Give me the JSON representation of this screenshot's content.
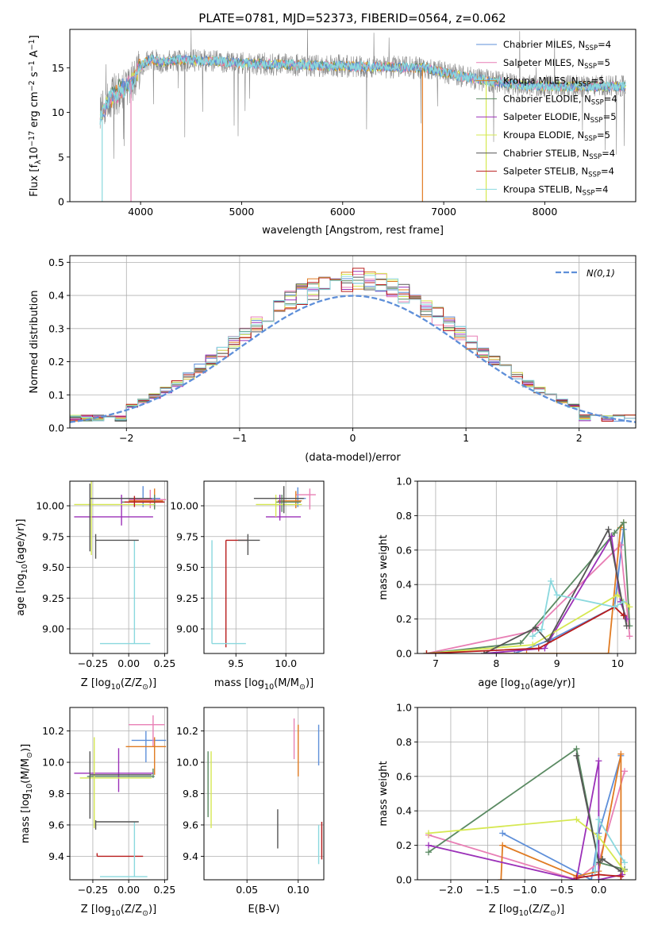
{
  "figure": {
    "title": "PLATE=0781, MJD=52373, FIBERID=0564, z=0.062"
  },
  "models": [
    {
      "name": "Chabrier MILES",
      "nssp": "4",
      "color": "#5e8fd9"
    },
    {
      "name": "Salpeter MILES",
      "nssp": "5",
      "color": "#e87fb5"
    },
    {
      "name": "Kroupa MILES",
      "nssp": "5",
      "color": "#e07b22"
    },
    {
      "name": "Chabrier ELODIE",
      "nssp": "4",
      "color": "#5a8a62"
    },
    {
      "name": "Salpeter ELODIE",
      "nssp": "5",
      "color": "#9b30b8"
    },
    {
      "name": "Kroupa ELODIE",
      "nssp": "5",
      "color": "#d6e852"
    },
    {
      "name": "Chabrier STELIB",
      "nssp": "4",
      "color": "#555555"
    },
    {
      "name": "Salpeter STELIB",
      "nssp": "4",
      "color": "#b81c1c"
    },
    {
      "name": "Kroupa STELIB",
      "nssp": "4",
      "color": "#8ad8de"
    }
  ],
  "legend_nssp_prefix": "N",
  "legend_nssp_sub": "SSP",
  "chart_data": [
    {
      "id": "spectrum",
      "type": "line",
      "xlabel": "wavelength [Angstrom, rest frame]",
      "ylabel": "Flux [f_λ10^{-17} erg cm^{-2} s^{-1} A^{-1}]",
      "xlim": [
        3300,
        8900
      ],
      "ylim": [
        0,
        19.3
      ],
      "xticks": [
        4000,
        5000,
        6000,
        7000,
        8000
      ],
      "yticks": [
        0,
        5,
        10,
        15
      ],
      "continuum_x": [
        3600,
        3700,
        3800,
        3900,
        4000,
        4100,
        4200,
        4400,
        4600,
        4800,
        5000,
        5300,
        5600,
        6000,
        6400,
        6800,
        7000,
        7200,
        7400,
        7600,
        7800,
        8200,
        8600,
        8800
      ],
      "continuum_y": [
        9.5,
        11.5,
        12.5,
        13.2,
        15.2,
        16.0,
        15.6,
        15.9,
        15.8,
        15.7,
        15.5,
        15.4,
        15.3,
        15.2,
        15.1,
        15.0,
        14.5,
        14.0,
        13.6,
        13.3,
        13.0,
        12.9,
        12.9,
        12.9
      ],
      "legend_position": "upper right"
    },
    {
      "id": "residuals",
      "type": "step",
      "xlabel": "(data-model)/error",
      "ylabel": "Normed distribution",
      "xlim": [
        -2.5,
        2.5
      ],
      "ylim": [
        0,
        0.52
      ],
      "xticks": [
        -2,
        -1,
        0,
        1,
        2
      ],
      "yticks": [
        0.0,
        0.1,
        0.2,
        0.3,
        0.4,
        0.5
      ],
      "bin_width": 0.1,
      "normal_curve_label": "N(0,1)",
      "normal_curve_color": "#5e8fd9",
      "legend_position": "upper right"
    },
    {
      "id": "age-vs-Z",
      "type": "errorbar",
      "xlabel": "Z [log10(Z/Z⊙)]",
      "ylabel": "age  [log10(age/yr)]",
      "xlim": [
        -0.41,
        0.27
      ],
      "ylim": [
        8.8,
        10.2
      ],
      "xticks": [
        -0.25,
        0.0,
        0.25
      ],
      "yticks": [
        9.0,
        9.25,
        9.5,
        9.75,
        10.0
      ],
      "points": [
        {
          "model": 0,
          "x": 0.1,
          "y": 10.06,
          "xlo": -0.05,
          "xhi": 0.22,
          "ylo": 9.99,
          "yhi": 10.16
        },
        {
          "model": 1,
          "x": 0.15,
          "y": 10.05,
          "xlo": 0.0,
          "xhi": 0.26,
          "ylo": 9.98,
          "yhi": 10.13
        },
        {
          "model": 2,
          "x": 0.18,
          "y": 10.04,
          "xlo": 0.0,
          "xhi": 0.24,
          "ylo": 9.98,
          "yhi": 10.14
        },
        {
          "model": 3,
          "x": 0.18,
          "y": 10.03,
          "xlo": -0.05,
          "xhi": 0.25,
          "ylo": 9.97,
          "yhi": 10.09
        },
        {
          "model": 4,
          "x": -0.05,
          "y": 9.91,
          "xlo": -0.38,
          "xhi": 0.17,
          "ylo": 9.84,
          "yhi": 10.09
        },
        {
          "model": 5,
          "x": -0.26,
          "y": 10.01,
          "xlo": -0.38,
          "xhi": 0.18,
          "ylo": 9.6,
          "yhi": 10.22
        },
        {
          "model": 6,
          "x": -0.27,
          "y": 10.06,
          "xlo": -0.27,
          "xhi": 0.16,
          "ylo": 9.63,
          "yhi": 10.18
        },
        {
          "model": 7,
          "x": 0.04,
          "y": 10.03,
          "xlo": -0.03,
          "xhi": 0.25,
          "ylo": 9.99,
          "yhi": 10.08
        },
        {
          "model": 8,
          "x": 0.04,
          "y": 8.88,
          "xlo": -0.2,
          "xhi": 0.15,
          "ylo": 8.88,
          "yhi": 9.72
        },
        {
          "model": 6,
          "x": -0.23,
          "y": 9.72,
          "xlo": -0.23,
          "xhi": 0.07,
          "ylo": 9.57,
          "yhi": 9.77
        }
      ]
    },
    {
      "id": "age-vs-mass",
      "type": "errorbar",
      "xlabel": "mass [log10(M/M⊙)]",
      "ylabel": "",
      "xlim": [
        9.18,
        10.38
      ],
      "ylim": [
        8.8,
        10.2
      ],
      "xticks": [
        9.5,
        10.0
      ],
      "yticks": [
        9.0,
        9.25,
        9.5,
        9.75,
        10.0
      ],
      "points": [
        {
          "model": 0,
          "x": 10.12,
          "y": 10.06,
          "xlo": 10.0,
          "xhi": 10.2,
          "ylo": 9.99,
          "yhi": 10.15
        },
        {
          "model": 1,
          "x": 10.24,
          "y": 10.09,
          "xlo": 10.1,
          "xhi": 10.3,
          "ylo": 9.97,
          "yhi": 10.14
        },
        {
          "model": 2,
          "x": 10.1,
          "y": 10.04,
          "xlo": 9.92,
          "xhi": 10.16,
          "ylo": 9.98,
          "yhi": 10.12
        },
        {
          "model": 3,
          "x": 9.96,
          "y": 10.03,
          "xlo": 9.9,
          "xhi": 10.15,
          "ylo": 9.95,
          "yhi": 10.09
        },
        {
          "model": 4,
          "x": 9.94,
          "y": 9.91,
          "xlo": 9.8,
          "xhi": 10.15,
          "ylo": 9.88,
          "yhi": 10.09
        },
        {
          "model": 5,
          "x": 9.9,
          "y": 10.01,
          "xlo": 9.7,
          "xhi": 10.16,
          "ylo": 9.91,
          "yhi": 10.09
        },
        {
          "model": 6,
          "x": 9.98,
          "y": 10.06,
          "xlo": 9.68,
          "xhi": 10.18,
          "ylo": 9.94,
          "yhi": 10.16
        },
        {
          "model": 7,
          "x": 9.4,
          "y": 9.72,
          "xlo": 9.4,
          "xhi": 9.62,
          "ylo": 8.85,
          "yhi": 9.72
        },
        {
          "model": 8,
          "x": 9.26,
          "y": 8.88,
          "xlo": 9.26,
          "xhi": 9.6,
          "ylo": 8.88,
          "yhi": 9.72
        },
        {
          "model": 6,
          "x": 9.62,
          "y": 9.72,
          "xlo": 9.52,
          "xhi": 9.74,
          "ylo": 9.6,
          "yhi": 9.77
        }
      ]
    },
    {
      "id": "mass-weight-vs-age",
      "type": "line",
      "xlabel": "age  [log10(age/yr)]",
      "ylabel": "mass weight",
      "xlim": [
        6.7,
        10.3
      ],
      "ylim": [
        0,
        1.0
      ],
      "xticks": [
        7,
        8,
        9,
        10
      ],
      "yticks": [
        0.0,
        0.2,
        0.4,
        0.6,
        0.8,
        1.0
      ],
      "series": [
        {
          "model": 0,
          "x": [
            8.3,
            8.9,
            9.95,
            10.1
          ],
          "y": [
            0.0,
            0.08,
            0.27,
            0.72
          ]
        },
        {
          "model": 1,
          "x": [
            6.85,
            8.6,
            10.05,
            10.2
          ],
          "y": [
            0.0,
            0.13,
            0.63,
            0.1
          ]
        },
        {
          "model": 2,
          "x": [
            7.8,
            8.5,
            9.85,
            10.05,
            10.1
          ],
          "y": [
            0.0,
            0.0,
            0.0,
            0.73,
            0.76
          ]
        },
        {
          "model": 3,
          "x": [
            6.85,
            8.4,
            9.95,
            10.1,
            10.2
          ],
          "y": [
            0.0,
            0.06,
            0.7,
            0.76,
            0.16
          ]
        },
        {
          "model": 4,
          "x": [
            7.8,
            8.8,
            9.9,
            10.05,
            10.15
          ],
          "y": [
            0.0,
            0.03,
            0.68,
            0.3,
            0.2
          ]
        },
        {
          "model": 5,
          "x": [
            6.85,
            8.6,
            10.0,
            10.2
          ],
          "y": [
            0.0,
            0.05,
            0.34,
            0.27
          ]
        },
        {
          "model": 6,
          "x": [
            7.8,
            8.65,
            8.85,
            9.85,
            10.15
          ],
          "y": [
            0.0,
            0.15,
            0.07,
            0.72,
            0.16
          ]
        },
        {
          "model": 7,
          "x": [
            6.85,
            8.7,
            9.95,
            10.1
          ],
          "y": [
            0.0,
            0.03,
            0.27,
            0.22
          ]
        },
        {
          "model": 8,
          "x": [
            8.6,
            8.75,
            8.9,
            9.0,
            9.95,
            10.1
          ],
          "y": [
            0.1,
            0.14,
            0.42,
            0.34,
            0.27,
            0.3
          ]
        }
      ]
    },
    {
      "id": "mass-vs-Z",
      "type": "errorbar",
      "xlabel": "Z [log10(Z/Z⊙)]",
      "ylabel": "mass [log10(M/M⊙)]",
      "xlim": [
        -0.41,
        0.27
      ],
      "ylim": [
        9.25,
        10.35
      ],
      "xticks": [
        -0.25,
        0.0,
        0.25
      ],
      "yticks": [
        9.4,
        9.6,
        9.8,
        10.0,
        10.2
      ],
      "points": [
        {
          "model": 0,
          "x": 0.12,
          "y": 10.14,
          "xlo": 0.02,
          "xhi": 0.26,
          "ylo": 10.0,
          "yhi": 10.2
        },
        {
          "model": 1,
          "x": 0.17,
          "y": 10.24,
          "xlo": 0.0,
          "xhi": 0.25,
          "ylo": 10.1,
          "yhi": 10.3
        },
        {
          "model": 2,
          "x": 0.18,
          "y": 10.1,
          "xlo": -0.02,
          "xhi": 0.26,
          "ylo": 9.92,
          "yhi": 10.16
        },
        {
          "model": 3,
          "x": 0.17,
          "y": 9.91,
          "xlo": -0.29,
          "xhi": 0.18,
          "ylo": 9.9,
          "yhi": 9.96
        },
        {
          "model": 4,
          "x": -0.07,
          "y": 9.93,
          "xlo": -0.38,
          "xhi": 0.17,
          "ylo": 9.81,
          "yhi": 10.09
        },
        {
          "model": 5,
          "x": -0.24,
          "y": 9.9,
          "xlo": -0.34,
          "xhi": 0.16,
          "ylo": 9.58,
          "yhi": 10.16
        },
        {
          "model": 6,
          "x": -0.27,
          "y": 9.92,
          "xlo": -0.27,
          "xhi": 0.16,
          "ylo": 9.64,
          "yhi": 10.07
        },
        {
          "model": 7,
          "x": -0.22,
          "y": 9.4,
          "xlo": -0.22,
          "xhi": 0.1,
          "ylo": 9.4,
          "yhi": 9.42
        },
        {
          "model": 8,
          "x": 0.04,
          "y": 9.27,
          "xlo": -0.2,
          "xhi": 0.13,
          "ylo": 9.27,
          "yhi": 9.62
        },
        {
          "model": 6,
          "x": -0.23,
          "y": 9.62,
          "xlo": -0.23,
          "xhi": 0.07,
          "ylo": 9.57,
          "yhi": 9.63
        }
      ]
    },
    {
      "id": "mass-vs-EBV",
      "type": "errorbar",
      "xlabel": "E(B-V)",
      "ylabel": "",
      "xlim": [
        0.008,
        0.125
      ],
      "ylim": [
        9.25,
        10.35
      ],
      "xticks": [
        0.05,
        0.1
      ],
      "yticks": [
        9.4,
        9.6,
        9.8,
        10.0,
        10.2
      ],
      "points": [
        {
          "model": 1,
          "x": 0.096,
          "y": 10.12,
          "xlo": 0.096,
          "xhi": 0.096,
          "ylo": 10.02,
          "yhi": 10.28
        },
        {
          "model": 2,
          "x": 0.1,
          "y": 10.1,
          "xlo": 0.1,
          "xhi": 0.1,
          "ylo": 9.91,
          "yhi": 10.24
        },
        {
          "model": 0,
          "x": 0.12,
          "y": 10.12,
          "xlo": 0.12,
          "xhi": 0.12,
          "ylo": 9.98,
          "yhi": 10.24
        },
        {
          "model": 3,
          "x": 0.012,
          "y": 9.9,
          "xlo": 0.012,
          "xhi": 0.012,
          "ylo": 9.65,
          "yhi": 10.07
        },
        {
          "model": 5,
          "x": 0.015,
          "y": 9.8,
          "xlo": 0.015,
          "xhi": 0.015,
          "ylo": 9.58,
          "yhi": 10.07
        },
        {
          "model": 6,
          "x": 0.08,
          "y": 9.6,
          "xlo": 0.08,
          "xhi": 0.08,
          "ylo": 9.45,
          "yhi": 9.7
        },
        {
          "model": 7,
          "x": 0.123,
          "y": 9.5,
          "xlo": 0.123,
          "xhi": 0.123,
          "ylo": 9.38,
          "yhi": 9.62
        },
        {
          "model": 8,
          "x": 0.12,
          "y": 9.45,
          "xlo": 0.12,
          "xhi": 0.12,
          "ylo": 9.35,
          "yhi": 9.6
        }
      ]
    },
    {
      "id": "mass-weight-vs-Z",
      "type": "line",
      "xlabel": "Z [log10(Z/Z⊙)]",
      "ylabel": "mass weight",
      "xlim": [
        -2.45,
        0.5
      ],
      "ylim": [
        0,
        1.0
      ],
      "xticks": [
        -2.0,
        -1.5,
        -1.0,
        -0.5,
        0.0
      ],
      "yticks": [
        0.0,
        0.2,
        0.4,
        0.6,
        0.8,
        1.0
      ],
      "series": [
        {
          "model": 0,
          "x": [
            -1.3,
            -0.1,
            0.0,
            0.3
          ],
          "y": [
            0.27,
            0.0,
            0.27,
            0.72
          ]
        },
        {
          "model": 1,
          "x": [
            -2.3,
            -0.3,
            0.0,
            0.35
          ],
          "y": [
            0.26,
            0.0,
            0.1,
            0.63
          ]
        },
        {
          "model": 2,
          "x": [
            -1.32,
            -1.3,
            -0.3,
            0.0,
            0.3,
            0.3
          ],
          "y": [
            0.0,
            0.2,
            0.02,
            0.05,
            0.73,
            0.0
          ]
        },
        {
          "model": 3,
          "x": [
            -2.3,
            -0.3,
            0.0,
            0.35
          ],
          "y": [
            0.16,
            0.76,
            0.1,
            0.06
          ]
        },
        {
          "model": 4,
          "x": [
            -2.3,
            -0.3,
            0.0,
            0.0,
            0.32
          ],
          "y": [
            0.2,
            0.0,
            0.69,
            0.0,
            0.03
          ]
        },
        {
          "model": 5,
          "x": [
            -2.3,
            -0.3,
            0.0,
            0.35
          ],
          "y": [
            0.27,
            0.35,
            0.25,
            0.05
          ]
        },
        {
          "model": 6,
          "x": [
            -0.3,
            0.0,
            0.05,
            0.3
          ],
          "y": [
            0.72,
            0.1,
            0.12,
            0.05
          ]
        },
        {
          "model": 7,
          "x": [
            -0.3,
            0.0,
            0.3
          ],
          "y": [
            0.01,
            0.03,
            0.02
          ]
        },
        {
          "model": 8,
          "x": [
            -0.05,
            0.0,
            0.35
          ],
          "y": [
            0.05,
            0.35,
            0.1
          ]
        }
      ]
    }
  ]
}
